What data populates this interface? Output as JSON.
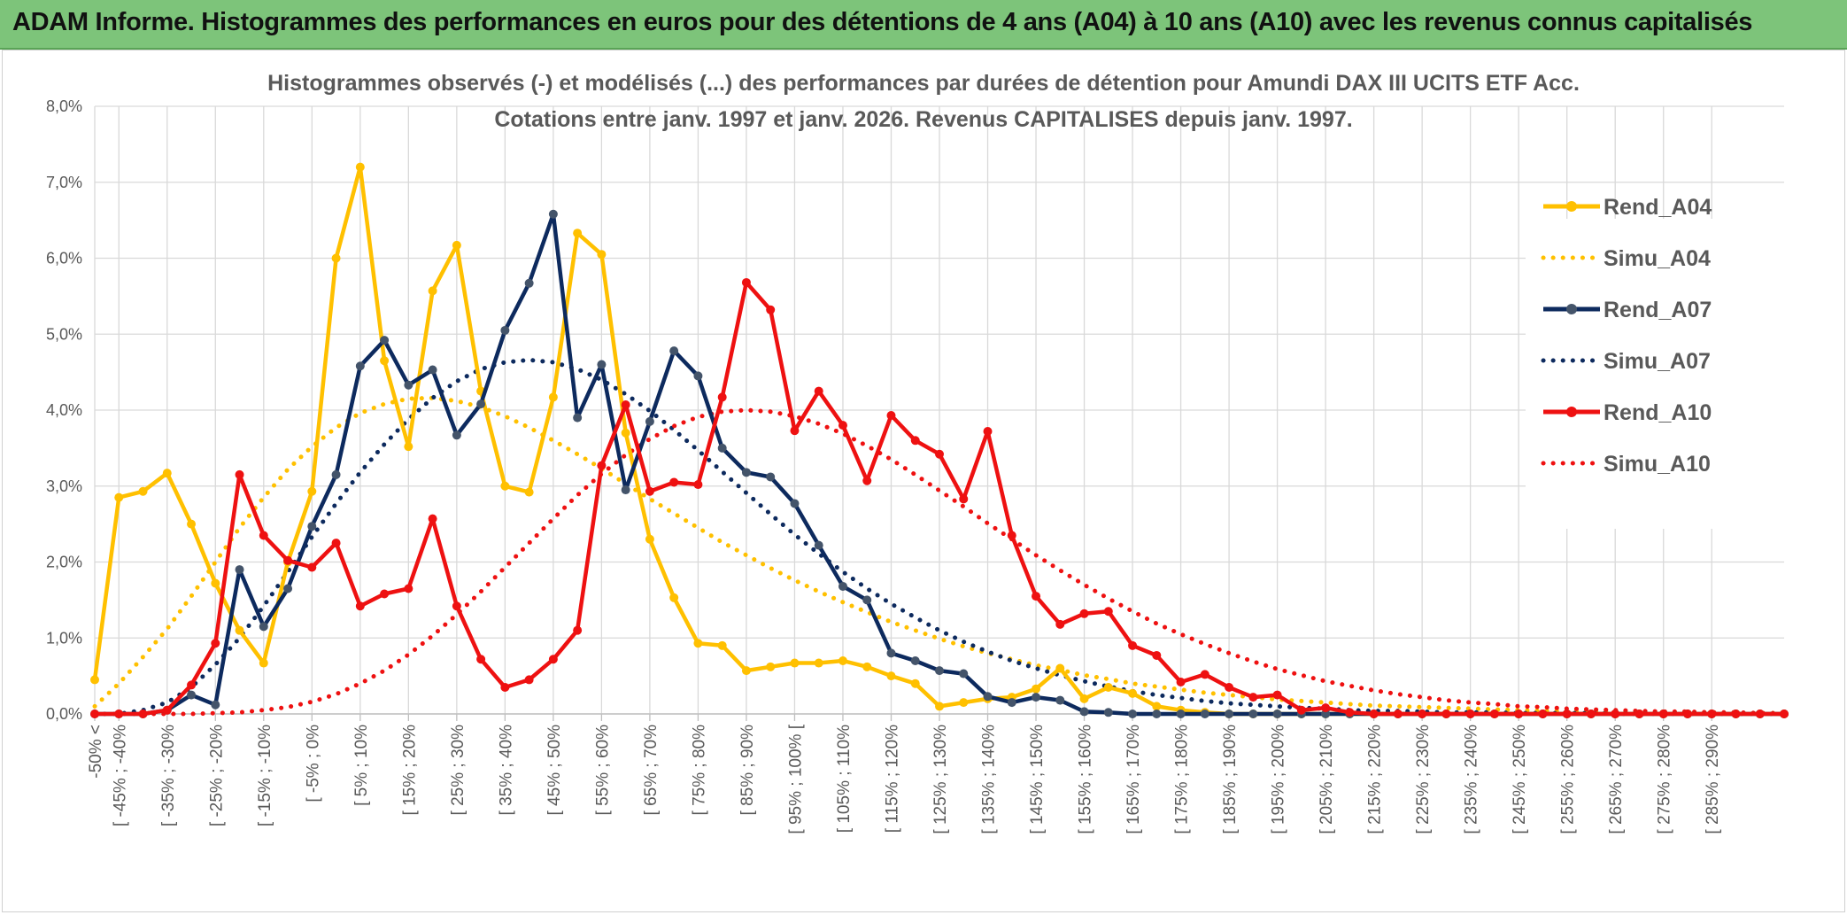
{
  "banner": {
    "title": "ADAM Informe. Histogrammes des performances en euros pour des détentions de 4 ans (A04) à 10 ans (A10) avec les revenus connus capitalisés",
    "color": "#7dc47a"
  },
  "chart_data": {
    "type": "line",
    "title_line1": "Histogrammes observés (-) et modélisés (...) des performances par durées de détention pour Amundi DAX III UCITS ETF Acc.",
    "title_line2": "Cotations entre janv. 1997 et janv. 2026. Revenus CAPITALISES depuis janv. 1997.",
    "ylim": [
      0,
      8
    ],
    "yticks": [
      "0,0%",
      "1,0%",
      "2,0%",
      "3,0%",
      "4,0%",
      "5,0%",
      "6,0%",
      "7,0%",
      "8,0%"
    ],
    "grid": true,
    "legend_position": "top-right",
    "categories": [
      "-50% <",
      "[ -45% ; -40%",
      "[ -35% ; -30%",
      "[ -25% ; -20%",
      "[ -15% ; -10%",
      "[ -5% ; 0%",
      "[ 5% ; 10%",
      "[ 15% ; 20%",
      "[ 25% ; 30%",
      "[ 35% ; 40%",
      "[ 45% ; 50%",
      "[ 55% ; 60%",
      "[ 65% ; 70%",
      "[ 75% ; 80%",
      "[ 85% ; 90%",
      "[ 95% ; 100% [",
      "[ 105% ; 110%",
      "[ 115% ; 120%",
      "[ 125% ; 130%",
      "[ 135% ; 140%",
      "[ 145% ; 150%",
      "[ 155% ; 160%",
      "[ 165% ; 170%",
      "[ 175% ; 180%",
      "[ 185% ; 190%",
      "[ 195% ; 200%",
      "[ 205% ; 210%",
      "[ 215% ; 220%",
      "[ 225% ; 230%",
      "[ 235% ; 240%",
      "[ 245% ; 250%",
      "[ 255% ; 260%",
      "[ 265% ; 270%",
      "[ 275% ; 280%",
      "[ 285% ; 290%"
    ],
    "x_values": [
      -50,
      -45,
      -40,
      -35,
      -30,
      -25,
      -20,
      -15,
      -10,
      -5,
      0,
      5,
      10,
      15,
      20,
      25,
      30,
      35,
      40,
      45,
      50,
      55,
      60,
      65,
      70,
      75,
      80,
      85,
      90,
      95,
      100,
      105,
      110,
      115,
      120,
      125,
      130,
      135,
      140,
      145,
      150,
      155,
      160,
      165,
      170,
      175,
      180,
      185,
      190,
      195,
      200,
      205,
      210,
      215,
      220,
      225,
      230,
      235,
      240,
      245,
      250,
      255,
      260,
      265,
      270,
      275,
      280,
      285,
      290,
      295,
      300
    ],
    "series": [
      {
        "name": "Rend_A04",
        "color": "#ffc000",
        "style": "solid",
        "markers": true,
        "values": [
          0.45,
          2.85,
          2.93,
          3.17,
          2.5,
          1.72,
          1.1,
          0.67,
          2.0,
          2.93,
          6.0,
          7.2,
          4.65,
          3.52,
          5.57,
          6.17,
          4.25,
          3.0,
          2.92,
          4.17,
          6.33,
          6.05,
          3.7,
          2.3,
          1.53,
          0.93,
          0.9,
          0.57,
          0.62,
          0.67,
          0.67,
          0.7,
          0.62,
          0.5,
          0.4,
          0.1,
          0.15,
          0.2,
          0.22,
          0.33,
          0.6,
          0.2,
          0.35,
          0.27,
          0.1,
          0.05,
          0.02,
          0.0,
          0.0,
          0.0,
          0.0,
          0.0,
          0.0,
          0.0,
          0.0,
          0.0,
          0.0,
          0.0,
          0.0,
          0.0,
          0.0,
          0.0,
          0.0,
          0.0,
          0.0,
          0.0,
          0.0,
          0.0,
          0.0,
          0.0,
          0.0
        ]
      },
      {
        "name": "Simu_A04",
        "color": "#ffc000",
        "style": "dotted",
        "markers": false,
        "values": [
          0.1,
          0.4,
          0.75,
          1.12,
          1.55,
          2.0,
          2.45,
          2.85,
          3.22,
          3.52,
          3.77,
          3.96,
          4.08,
          4.15,
          4.16,
          4.12,
          4.04,
          3.92,
          3.77,
          3.6,
          3.42,
          3.23,
          3.03,
          2.83,
          2.64,
          2.45,
          2.26,
          2.09,
          1.92,
          1.76,
          1.61,
          1.47,
          1.34,
          1.21,
          1.1,
          0.99,
          0.89,
          0.8,
          0.72,
          0.64,
          0.58,
          0.51,
          0.46,
          0.4,
          0.36,
          0.32,
          0.28,
          0.25,
          0.22,
          0.19,
          0.17,
          0.15,
          0.13,
          0.11,
          0.1,
          0.09,
          0.08,
          0.07,
          0.06,
          0.05,
          0.04,
          0.04,
          0.03,
          0.03,
          0.02,
          0.02,
          0.02,
          0.02,
          0.01,
          0.01,
          0.01
        ]
      },
      {
        "name": "Rend_A07",
        "color": "#0d2a5e",
        "style": "solid",
        "markers": true,
        "values": [
          0.0,
          0.0,
          0.0,
          0.05,
          0.25,
          0.12,
          1.9,
          1.15,
          1.65,
          2.47,
          3.15,
          4.58,
          4.92,
          4.33,
          4.53,
          3.67,
          4.08,
          5.05,
          5.67,
          6.58,
          3.9,
          4.6,
          2.95,
          3.85,
          4.78,
          4.45,
          3.5,
          3.18,
          3.12,
          2.77,
          2.22,
          1.68,
          1.5,
          0.8,
          0.7,
          0.57,
          0.53,
          0.23,
          0.15,
          0.22,
          0.18,
          0.03,
          0.02,
          0.0,
          0.0,
          0.0,
          0.0,
          0.0,
          0.0,
          0.0,
          0.0,
          0.0,
          0.0,
          0.0,
          0.0,
          0.0,
          0.0,
          0.0,
          0.0,
          0.0,
          0.0,
          0.0,
          0.0,
          0.0,
          0.0,
          0.0,
          0.0,
          0.0,
          0.0,
          0.0,
          0.0
        ]
      },
      {
        "name": "Simu_A07",
        "color": "#0d2a5e",
        "style": "dotted",
        "markers": false,
        "values": [
          0.0,
          0.0,
          0.05,
          0.15,
          0.35,
          0.65,
          1.0,
          1.42,
          1.87,
          2.33,
          2.77,
          3.18,
          3.55,
          3.88,
          4.16,
          4.38,
          4.54,
          4.63,
          4.66,
          4.63,
          4.54,
          4.4,
          4.21,
          3.99,
          3.74,
          3.47,
          3.19,
          2.91,
          2.63,
          2.36,
          2.11,
          1.87,
          1.65,
          1.45,
          1.27,
          1.1,
          0.95,
          0.82,
          0.7,
          0.6,
          0.51,
          0.43,
          0.36,
          0.3,
          0.25,
          0.21,
          0.17,
          0.14,
          0.12,
          0.1,
          0.08,
          0.07,
          0.05,
          0.04,
          0.04,
          0.03,
          0.02,
          0.02,
          0.02,
          0.01,
          0.01,
          0.01,
          0.01,
          0.0,
          0.0,
          0.0,
          0.0,
          0.0,
          0.0,
          0.0,
          0.0
        ]
      },
      {
        "name": "Rend_A10",
        "color": "#ee1111",
        "style": "solid",
        "markers": true,
        "values": [
          0.0,
          0.0,
          0.0,
          0.05,
          0.38,
          0.93,
          3.15,
          2.35,
          2.02,
          1.93,
          2.25,
          1.42,
          1.58,
          1.65,
          2.57,
          1.42,
          0.72,
          0.35,
          0.45,
          0.72,
          1.1,
          3.27,
          4.07,
          2.93,
          3.05,
          3.02,
          4.17,
          5.68,
          5.32,
          3.73,
          4.25,
          3.8,
          3.07,
          3.93,
          3.6,
          3.42,
          2.83,
          3.72,
          2.35,
          1.55,
          1.18,
          1.32,
          1.35,
          0.9,
          0.77,
          0.42,
          0.52,
          0.35,
          0.22,
          0.25,
          0.05,
          0.08,
          0.02,
          0.0,
          0.0,
          0.0,
          0.0,
          0.0,
          0.0,
          0.0,
          0.0,
          0.0,
          0.0,
          0.0,
          0.0,
          0.0,
          0.0,
          0.0,
          0.0,
          0.0,
          0.0
        ]
      },
      {
        "name": "Simu_A10",
        "color": "#ee1111",
        "style": "dotted",
        "markers": false,
        "values": [
          0.0,
          0.0,
          0.0,
          0.0,
          0.0,
          0.01,
          0.02,
          0.05,
          0.09,
          0.16,
          0.26,
          0.4,
          0.57,
          0.78,
          1.03,
          1.31,
          1.61,
          1.93,
          2.25,
          2.57,
          2.88,
          3.16,
          3.41,
          3.62,
          3.79,
          3.91,
          3.98,
          4.0,
          3.98,
          3.92,
          3.82,
          3.69,
          3.53,
          3.35,
          3.15,
          2.94,
          2.73,
          2.51,
          2.3,
          2.09,
          1.89,
          1.7,
          1.52,
          1.35,
          1.19,
          1.05,
          0.92,
          0.8,
          0.69,
          0.59,
          0.51,
          0.43,
          0.37,
          0.31,
          0.26,
          0.22,
          0.18,
          0.15,
          0.13,
          0.1,
          0.09,
          0.07,
          0.06,
          0.05,
          0.04,
          0.03,
          0.03,
          0.02,
          0.02,
          0.01,
          0.01
        ]
      }
    ]
  }
}
